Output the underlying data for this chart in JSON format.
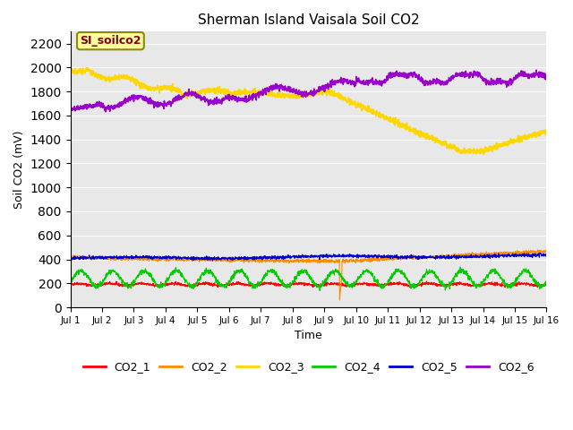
{
  "title": "Sherman Island Vaisala Soil CO2",
  "ylabel": "Soil CO2 (mV)",
  "xlabel": "Time",
  "annotation_text": "SI_soilco2",
  "annotation_color": "#8B0000",
  "annotation_bg": "#FFFFA0",
  "annotation_border": "#8B8B00",
  "ylim": [
    0,
    2300
  ],
  "yticks": [
    0,
    200,
    400,
    600,
    800,
    1000,
    1200,
    1400,
    1600,
    1800,
    2000,
    2200
  ],
  "xtick_labels": [
    "Jul 1",
    "Jul 2",
    "Jul 3",
    "Jul 4",
    "Jul 5",
    "Jul 6",
    "Jul 7",
    "Jul 8",
    "Jul 9",
    "Jul 10",
    "Jul 11",
    "Jul 12",
    "Jul 13",
    "Jul 14",
    "Jul 15",
    "Jul 16"
  ],
  "series": {
    "CO2_1": {
      "color": "#FF0000",
      "lw": 0.8
    },
    "CO2_2": {
      "color": "#FF8C00",
      "lw": 0.8
    },
    "CO2_3": {
      "color": "#FFD700",
      "lw": 1.2
    },
    "CO2_4": {
      "color": "#00CC00",
      "lw": 0.8
    },
    "CO2_5": {
      "color": "#0000CD",
      "lw": 0.8
    },
    "CO2_6": {
      "color": "#9900CC",
      "lw": 1.2
    }
  },
  "legend_entries": [
    "CO2_1",
    "CO2_2",
    "CO2_3",
    "CO2_4",
    "CO2_5",
    "CO2_6"
  ],
  "legend_colors": [
    "#FF0000",
    "#FF8C00",
    "#FFD700",
    "#00CC00",
    "#0000CD",
    "#9900CC"
  ],
  "bg_color": "#E8E8E8",
  "grid_color": "#FFFFFF"
}
